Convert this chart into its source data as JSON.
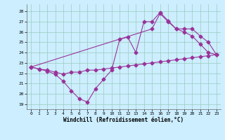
{
  "xlabel": "Windchill (Refroidissement éolien,°C)",
  "bg_color": "#cceeff",
  "line_color": "#993399",
  "grid_color": "#99ccbb",
  "xlim": [
    -0.5,
    23.5
  ],
  "ylim": [
    18.5,
    28.7
  ],
  "yticks": [
    19,
    20,
    21,
    22,
    23,
    24,
    25,
    26,
    27,
    28
  ],
  "xticks": [
    0,
    1,
    2,
    3,
    4,
    5,
    6,
    7,
    8,
    9,
    10,
    11,
    12,
    13,
    14,
    15,
    16,
    17,
    18,
    19,
    20,
    21,
    22,
    23
  ],
  "line1_x": [
    0,
    1,
    2,
    3,
    4,
    5,
    6,
    7,
    8,
    9,
    10,
    11,
    12,
    13,
    14,
    15,
    16,
    17,
    18,
    19,
    20,
    21,
    22,
    23
  ],
  "line1_y": [
    22.6,
    22.4,
    22.3,
    22.1,
    21.9,
    22.1,
    22.1,
    22.3,
    22.3,
    22.4,
    22.5,
    22.6,
    22.7,
    22.8,
    22.9,
    23.0,
    23.1,
    23.2,
    23.3,
    23.4,
    23.5,
    23.6,
    23.7,
    23.8
  ],
  "line2_x": [
    0,
    1,
    2,
    3,
    4,
    5,
    6,
    7,
    8,
    9,
    10,
    11,
    12,
    13,
    14,
    15,
    16,
    17,
    18,
    19,
    20,
    21,
    22,
    23
  ],
  "line2_y": [
    22.6,
    22.4,
    22.2,
    21.9,
    21.2,
    20.3,
    19.5,
    19.2,
    20.5,
    21.4,
    22.3,
    25.3,
    25.5,
    24.0,
    27.0,
    27.0,
    27.9,
    27.1,
    26.3,
    26.0,
    25.6,
    24.8,
    24.0,
    23.8
  ],
  "line3_x": [
    0,
    15,
    16,
    17,
    18,
    19,
    20,
    21,
    22,
    23
  ],
  "line3_y": [
    22.6,
    26.3,
    27.8,
    27.0,
    26.3,
    26.3,
    26.3,
    25.6,
    25.0,
    23.8
  ]
}
